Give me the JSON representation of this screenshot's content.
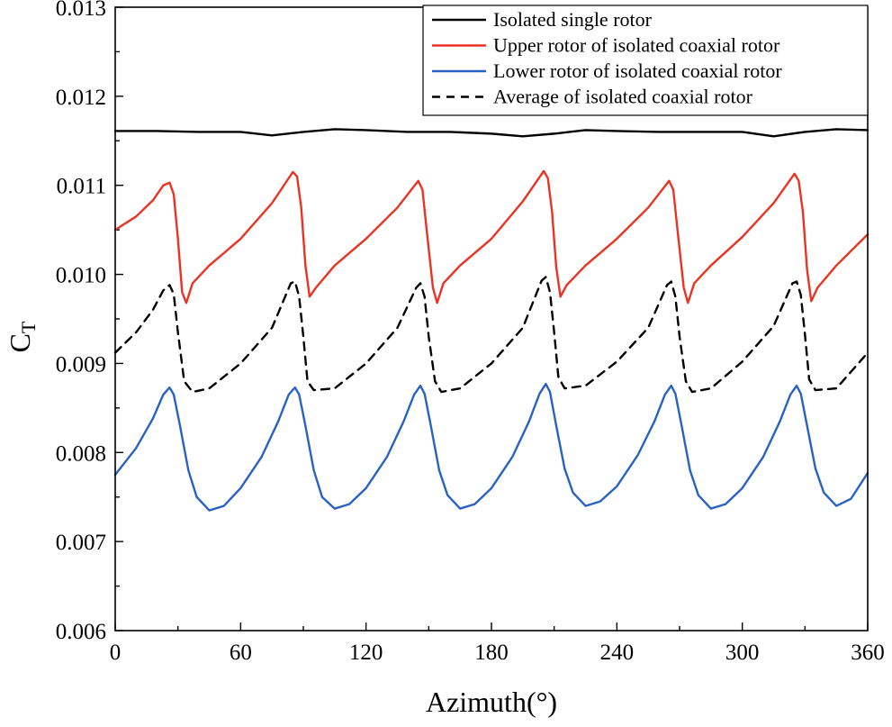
{
  "chart_data": {
    "type": "line",
    "title": "",
    "xlabel": "Azimuth(°)",
    "ylabel_main": "C",
    "ylabel_sub": "T",
    "xlim": [
      0,
      360
    ],
    "ylim": [
      0.006,
      0.013
    ],
    "x_ticks": [
      "0",
      "60",
      "120",
      "180",
      "240",
      "300",
      "360"
    ],
    "y_ticks": [
      "0.006",
      "0.007",
      "0.008",
      "0.009",
      "0.010",
      "0.011",
      "0.012",
      "0.013"
    ],
    "legend_position": "top-right",
    "series": [
      {
        "name": "Isolated single rotor",
        "color": "#000000",
        "dash": "solid",
        "points": [
          [
            0,
            0.01161
          ],
          [
            20,
            0.01161
          ],
          [
            40,
            0.0116
          ],
          [
            60,
            0.0116
          ],
          [
            75,
            0.01156
          ],
          [
            90,
            0.0116
          ],
          [
            105,
            0.01163
          ],
          [
            120,
            0.01162
          ],
          [
            140,
            0.0116
          ],
          [
            160,
            0.0116
          ],
          [
            180,
            0.01158
          ],
          [
            195,
            0.01155
          ],
          [
            210,
            0.01158
          ],
          [
            225,
            0.01162
          ],
          [
            240,
            0.01161
          ],
          [
            260,
            0.0116
          ],
          [
            280,
            0.0116
          ],
          [
            300,
            0.0116
          ],
          [
            315,
            0.01155
          ],
          [
            330,
            0.0116
          ],
          [
            345,
            0.01163
          ],
          [
            360,
            0.01162
          ]
        ]
      },
      {
        "name": "Upper rotor of isolated coaxial rotor",
        "color": "#ea3323",
        "dash": "solid",
        "points": [
          [
            0,
            0.0105
          ],
          [
            10,
            0.01065
          ],
          [
            18,
            0.01083
          ],
          [
            23,
            0.011
          ],
          [
            26,
            0.01103
          ],
          [
            28,
            0.0109
          ],
          [
            30,
            0.0104
          ],
          [
            32,
            0.0098
          ],
          [
            34,
            0.00968
          ],
          [
            37,
            0.0099
          ],
          [
            45,
            0.0101
          ],
          [
            60,
            0.0104
          ],
          [
            75,
            0.0108
          ],
          [
            85,
            0.01115
          ],
          [
            87,
            0.0111
          ],
          [
            89,
            0.01075
          ],
          [
            91,
            0.0101
          ],
          [
            93,
            0.00975
          ],
          [
            96,
            0.00985
          ],
          [
            105,
            0.0101
          ],
          [
            120,
            0.0104
          ],
          [
            135,
            0.01075
          ],
          [
            145,
            0.01105
          ],
          [
            147,
            0.01095
          ],
          [
            149,
            0.0105
          ],
          [
            152,
            0.00985
          ],
          [
            154,
            0.00968
          ],
          [
            157,
            0.0099
          ],
          [
            165,
            0.0101
          ],
          [
            180,
            0.0104
          ],
          [
            195,
            0.01082
          ],
          [
            205,
            0.01116
          ],
          [
            207,
            0.01108
          ],
          [
            209,
            0.0107
          ],
          [
            211,
            0.01008
          ],
          [
            213,
            0.00975
          ],
          [
            216,
            0.00988
          ],
          [
            225,
            0.0101
          ],
          [
            240,
            0.0104
          ],
          [
            255,
            0.01075
          ],
          [
            265,
            0.01105
          ],
          [
            267,
            0.01095
          ],
          [
            269,
            0.0105
          ],
          [
            272,
            0.00985
          ],
          [
            274,
            0.00968
          ],
          [
            277,
            0.0099
          ],
          [
            285,
            0.0101
          ],
          [
            300,
            0.01042
          ],
          [
            315,
            0.0108
          ],
          [
            325,
            0.01113
          ],
          [
            327,
            0.01105
          ],
          [
            329,
            0.0107
          ],
          [
            331,
            0.01005
          ],
          [
            333,
            0.0097
          ],
          [
            336,
            0.00985
          ],
          [
            345,
            0.0101
          ],
          [
            360,
            0.01045
          ]
        ]
      },
      {
        "name": "Lower rotor of isolated coaxial rotor",
        "color": "#2a62c4",
        "dash": "solid",
        "points": [
          [
            0,
            0.00775
          ],
          [
            10,
            0.00805
          ],
          [
            18,
            0.00838
          ],
          [
            23,
            0.00865
          ],
          [
            26,
            0.00873
          ],
          [
            28,
            0.00865
          ],
          [
            31,
            0.0083
          ],
          [
            35,
            0.0078
          ],
          [
            39,
            0.0075
          ],
          [
            45,
            0.00735
          ],
          [
            52,
            0.0074
          ],
          [
            60,
            0.0076
          ],
          [
            70,
            0.00795
          ],
          [
            78,
            0.00835
          ],
          [
            83,
            0.00865
          ],
          [
            86,
            0.00873
          ],
          [
            88,
            0.00865
          ],
          [
            91,
            0.0083
          ],
          [
            95,
            0.0078
          ],
          [
            99,
            0.0075
          ],
          [
            105,
            0.00737
          ],
          [
            112,
            0.00742
          ],
          [
            120,
            0.0076
          ],
          [
            130,
            0.00795
          ],
          [
            138,
            0.00835
          ],
          [
            143,
            0.00865
          ],
          [
            146,
            0.00875
          ],
          [
            148,
            0.00866
          ],
          [
            151,
            0.0083
          ],
          [
            155,
            0.0078
          ],
          [
            159,
            0.00752
          ],
          [
            165,
            0.00737
          ],
          [
            172,
            0.00742
          ],
          [
            180,
            0.0076
          ],
          [
            190,
            0.00795
          ],
          [
            198,
            0.00835
          ],
          [
            203,
            0.00866
          ],
          [
            206,
            0.00877
          ],
          [
            208,
            0.00868
          ],
          [
            211,
            0.0083
          ],
          [
            215,
            0.00782
          ],
          [
            219,
            0.00755
          ],
          [
            225,
            0.0074
          ],
          [
            232,
            0.00745
          ],
          [
            240,
            0.00762
          ],
          [
            250,
            0.00797
          ],
          [
            258,
            0.00835
          ],
          [
            263,
            0.00865
          ],
          [
            266,
            0.00875
          ],
          [
            268,
            0.00866
          ],
          [
            271,
            0.0083
          ],
          [
            275,
            0.0078
          ],
          [
            279,
            0.00752
          ],
          [
            285,
            0.00737
          ],
          [
            292,
            0.00742
          ],
          [
            300,
            0.0076
          ],
          [
            310,
            0.00795
          ],
          [
            318,
            0.00835
          ],
          [
            323,
            0.00865
          ],
          [
            326,
            0.00875
          ],
          [
            328,
            0.00866
          ],
          [
            331,
            0.0083
          ],
          [
            335,
            0.00782
          ],
          [
            339,
            0.00755
          ],
          [
            345,
            0.0074
          ],
          [
            352,
            0.00748
          ],
          [
            360,
            0.00777
          ]
        ]
      },
      {
        "name": "Average of isolated coaxial rotor",
        "color": "#000000",
        "dash": "dashed",
        "points": [
          [
            0,
            0.00912
          ],
          [
            10,
            0.00935
          ],
          [
            18,
            0.0096
          ],
          [
            23,
            0.00982
          ],
          [
            26,
            0.00988
          ],
          [
            28,
            0.00978
          ],
          [
            30,
            0.00935
          ],
          [
            33,
            0.0088
          ],
          [
            37,
            0.00868
          ],
          [
            45,
            0.00872
          ],
          [
            60,
            0.009
          ],
          [
            75,
            0.0094
          ],
          [
            84,
            0.0099
          ],
          [
            86,
            0.00992
          ],
          [
            88,
            0.00975
          ],
          [
            90,
            0.0093
          ],
          [
            92,
            0.0088
          ],
          [
            95,
            0.0087
          ],
          [
            105,
            0.00872
          ],
          [
            120,
            0.009
          ],
          [
            135,
            0.0094
          ],
          [
            144,
            0.00985
          ],
          [
            146,
            0.0099
          ],
          [
            148,
            0.00975
          ],
          [
            150,
            0.0093
          ],
          [
            153,
            0.0088
          ],
          [
            156,
            0.00868
          ],
          [
            165,
            0.00872
          ],
          [
            180,
            0.009
          ],
          [
            195,
            0.0094
          ],
          [
            204,
            0.00993
          ],
          [
            206,
            0.00997
          ],
          [
            208,
            0.0098
          ],
          [
            210,
            0.00935
          ],
          [
            212,
            0.00885
          ],
          [
            215,
            0.00872
          ],
          [
            225,
            0.00875
          ],
          [
            240,
            0.00902
          ],
          [
            255,
            0.0094
          ],
          [
            264,
            0.00988
          ],
          [
            266,
            0.00992
          ],
          [
            268,
            0.00975
          ],
          [
            270,
            0.0093
          ],
          [
            273,
            0.0088
          ],
          [
            276,
            0.00868
          ],
          [
            285,
            0.00872
          ],
          [
            300,
            0.00902
          ],
          [
            315,
            0.00942
          ],
          [
            324,
            0.0099
          ],
          [
            326,
            0.00992
          ],
          [
            328,
            0.00977
          ],
          [
            330,
            0.00932
          ],
          [
            332,
            0.00882
          ],
          [
            335,
            0.0087
          ],
          [
            345,
            0.00872
          ],
          [
            360,
            0.00912
          ]
        ]
      }
    ]
  }
}
